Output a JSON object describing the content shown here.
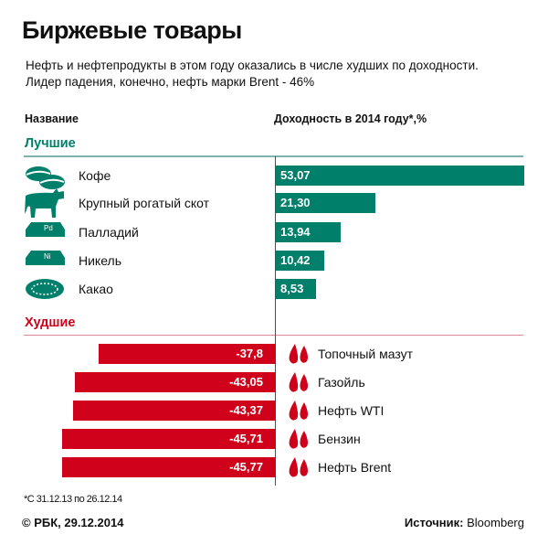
{
  "title": "Биржевые товары",
  "subtitle": [
    "Нефть и нефтепродукты в этом году оказались в числе худших по доходности.",
    "Лидер падения, конечно, нефть марки Brent - 46%"
  ],
  "colors": {
    "best": "#00806b",
    "worst": "#d0021b"
  },
  "chart_data": {
    "type": "bar",
    "orientation": "horizontal",
    "column_headers": {
      "name": "Название",
      "value": "Доходность в 2014 году*,%"
    },
    "groups": [
      {
        "label": "Лучшие",
        "items": [
          {
            "name": "Кофе",
            "value": 53.07,
            "display": "53,07",
            "icon": "coffee-beans-icon"
          },
          {
            "name": "Крупный рогатый скот",
            "value": 21.3,
            "display": "21,30",
            "icon": "cow-icon"
          },
          {
            "name": "Палладий",
            "value": 13.94,
            "display": "13,94",
            "icon": "palladium-ingot-icon"
          },
          {
            "name": "Никель",
            "value": 10.42,
            "display": "10,42",
            "icon": "nickel-ingot-icon"
          },
          {
            "name": "Какао",
            "value": 8.53,
            "display": "8,53",
            "icon": "cocoa-pod-icon"
          }
        ]
      },
      {
        "label": "Худшие",
        "items": [
          {
            "name": "Топочный мазут",
            "value": -37.8,
            "display": "-37,8",
            "icon": "oil-drops-icon"
          },
          {
            "name": "Газойль",
            "value": -43.05,
            "display": "-43,05",
            "icon": "oil-drops-icon"
          },
          {
            "name": "Нефть WTI",
            "value": -43.37,
            "display": "-43,37",
            "icon": "oil-drops-icon"
          },
          {
            "name": "Бензин",
            "value": -45.71,
            "display": "-45,71",
            "icon": "oil-drops-icon"
          },
          {
            "name": "Нефть Brent",
            "value": -45.77,
            "display": "-45,77",
            "icon": "oil-drops-icon"
          }
        ]
      }
    ]
  },
  "footnote": "*С 31.12.13 по 26.12.14",
  "copyright": "© РБК, 29.12.2014",
  "source_label": "Источник:",
  "source_value": "Bloomberg"
}
